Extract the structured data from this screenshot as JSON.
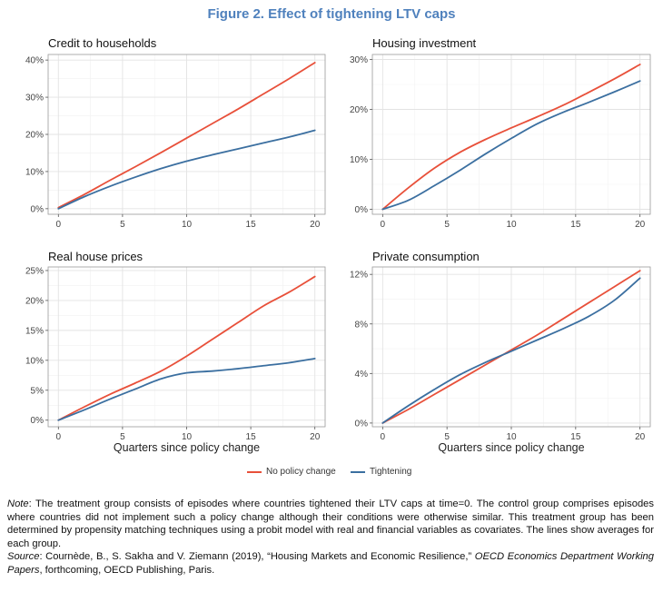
{
  "figure_title": "Figure 2. Effect of tightening LTV caps",
  "x_axis_title": "Quarters since policy change",
  "legend": [
    {
      "label": "No policy change",
      "color": "#e8503a"
    },
    {
      "label": "Tightening",
      "color": "#3b6fa0"
    }
  ],
  "note": {
    "label": "Note",
    "text": ": The treatment group consists of episodes where countries tightened their LTV caps at time=0. The control group comprises episodes where countries did not implement such a policy change although their conditions were otherwise similar. This treatment group has been determined by propensity matching techniques using a probit model with real and financial variables as covariates. The lines show averages for each group."
  },
  "source": {
    "label": "Source",
    "text1": ": Cournède, B., S. Sakha and V. Ziemann (2019), “Housing Markets and Economic Resilience,”",
    "italic": "OECD Economics Department Working Papers",
    "text2": ", forthcoming, OECD Publishing, Paris."
  },
  "chart_data": [
    {
      "type": "line",
      "title": "Credit to households",
      "xlabel": "",
      "ylabel": "",
      "xlim": [
        -0.8,
        20.8
      ],
      "ylim": [
        -1.5,
        41.5
      ],
      "x_ticks": [
        0,
        5,
        10,
        15,
        20
      ],
      "y_ticks": [
        0,
        10,
        20,
        30,
        40
      ],
      "y_tick_labels": [
        "0%",
        "10%",
        "20%",
        "30%",
        "40%"
      ],
      "grid": true,
      "series": [
        {
          "name": "No policy change",
          "color": "#e8503a",
          "x": [
            0,
            2,
            4,
            6,
            8,
            10,
            12,
            14,
            16,
            18,
            20
          ],
          "y": [
            0.3,
            3.8,
            7.6,
            11.3,
            15.1,
            19.0,
            22.9,
            26.8,
            30.9,
            35.0,
            39.3
          ]
        },
        {
          "name": "Tightening",
          "color": "#3b6fa0",
          "x": [
            0,
            2,
            4,
            6,
            8,
            10,
            12,
            14,
            16,
            18,
            20
          ],
          "y": [
            0.0,
            3.2,
            6.0,
            8.5,
            10.8,
            12.8,
            14.5,
            16.1,
            17.7,
            19.3,
            21.1
          ]
        }
      ]
    },
    {
      "type": "line",
      "title": "Housing investment",
      "xlabel": "",
      "ylabel": "",
      "xlim": [
        -0.8,
        20.8
      ],
      "ylim": [
        -1,
        31
      ],
      "x_ticks": [
        0,
        5,
        10,
        15,
        20
      ],
      "y_ticks": [
        0,
        10,
        20,
        30
      ],
      "y_tick_labels": [
        "0%",
        "10%",
        "20%",
        "30%"
      ],
      "grid": true,
      "series": [
        {
          "name": "No policy change",
          "color": "#e8503a",
          "x": [
            0,
            2,
            4,
            6,
            8,
            10,
            12,
            14,
            16,
            18,
            20
          ],
          "y": [
            0.0,
            4.3,
            8.2,
            11.4,
            14.0,
            16.3,
            18.5,
            20.8,
            23.4,
            26.1,
            29.0
          ]
        },
        {
          "name": "Tightening",
          "color": "#3b6fa0",
          "x": [
            0,
            2,
            4,
            6,
            8,
            10,
            12,
            14,
            16,
            18,
            20
          ],
          "y": [
            0.0,
            1.8,
            4.7,
            7.8,
            11.1,
            14.2,
            17.1,
            19.4,
            21.4,
            23.5,
            25.7
          ]
        }
      ]
    },
    {
      "type": "line",
      "title": "Real house prices",
      "xlabel": "Quarters since policy change",
      "ylabel": "",
      "xlim": [
        -0.8,
        20.8
      ],
      "ylim": [
        -1.1,
        25.6
      ],
      "x_ticks": [
        0,
        5,
        10,
        15,
        20
      ],
      "y_ticks": [
        0,
        5,
        10,
        15,
        20,
        25
      ],
      "y_tick_labels": [
        "0%",
        "5%",
        "10%",
        "15%",
        "20%",
        "25%"
      ],
      "grid": true,
      "series": [
        {
          "name": "No policy change",
          "color": "#e8503a",
          "x": [
            0,
            2,
            4,
            6,
            8,
            10,
            12,
            14,
            16,
            18,
            20
          ],
          "y": [
            0.0,
            2.2,
            4.3,
            6.2,
            8.2,
            10.7,
            13.5,
            16.3,
            19.1,
            21.4,
            24.0
          ]
        },
        {
          "name": "Tightening",
          "color": "#3b6fa0",
          "x": [
            0,
            2,
            4,
            6,
            8,
            10,
            12,
            14,
            16,
            18,
            20
          ],
          "y": [
            0.0,
            1.7,
            3.5,
            5.2,
            6.9,
            7.9,
            8.2,
            8.6,
            9.1,
            9.6,
            10.3
          ]
        }
      ]
    },
    {
      "type": "line",
      "title": "Private consumption",
      "xlabel": "Quarters since policy change",
      "ylabel": "",
      "xlim": [
        -0.8,
        20.8
      ],
      "ylim": [
        -0.3,
        12.6
      ],
      "x_ticks": [
        0,
        5,
        10,
        15,
        20
      ],
      "y_ticks": [
        0,
        4,
        8,
        12
      ],
      "y_tick_labels": [
        "0%",
        "4%",
        "8%",
        "12%"
      ],
      "grid": true,
      "series": [
        {
          "name": "No policy change",
          "color": "#e8503a",
          "x": [
            0,
            2,
            4,
            6,
            8,
            10,
            12,
            14,
            16,
            18,
            20
          ],
          "y": [
            0.0,
            1.1,
            2.3,
            3.5,
            4.7,
            5.9,
            7.1,
            8.4,
            9.7,
            11.0,
            12.3
          ]
        },
        {
          "name": "Tightening",
          "color": "#3b6fa0",
          "x": [
            0,
            2,
            4,
            6,
            8,
            10,
            12,
            14,
            16,
            18,
            20
          ],
          "y": [
            0.0,
            1.4,
            2.7,
            3.9,
            4.9,
            5.8,
            6.7,
            7.6,
            8.6,
            9.9,
            11.7
          ]
        }
      ]
    }
  ]
}
